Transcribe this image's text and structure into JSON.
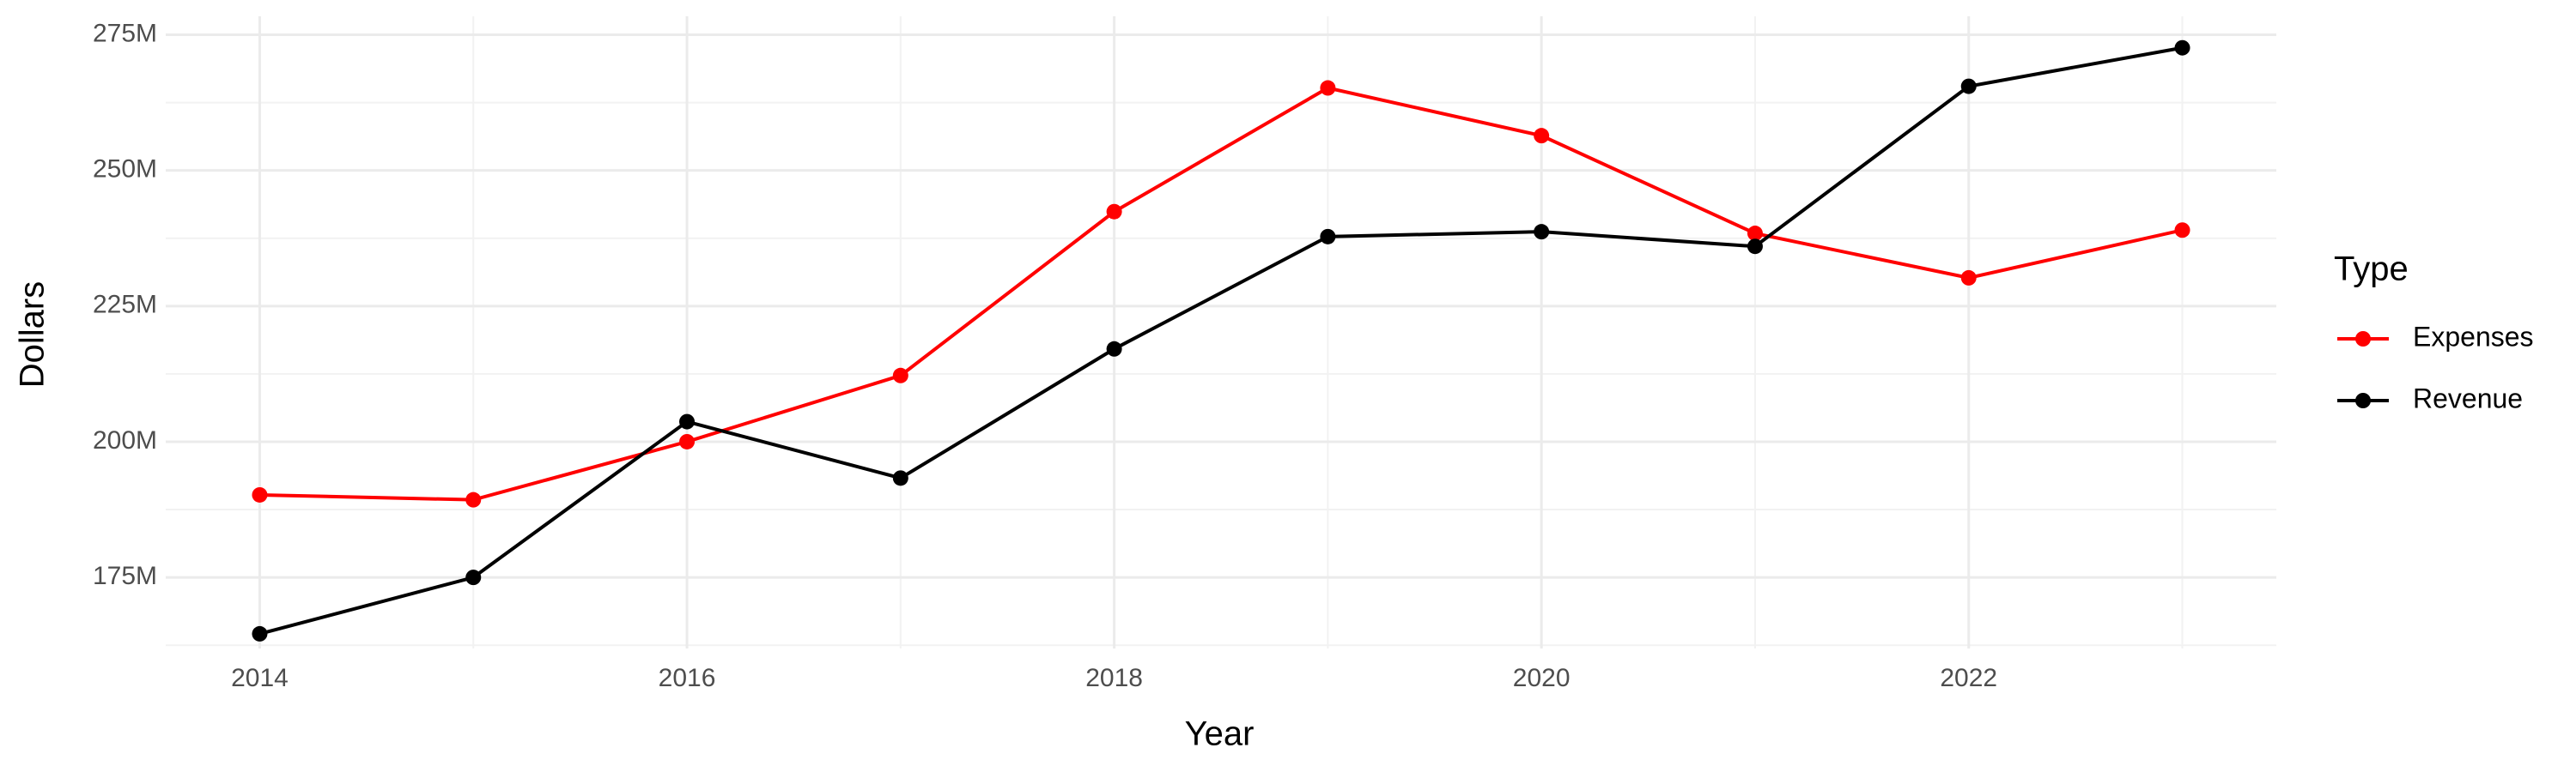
{
  "chart_data": {
    "type": "line",
    "x_label": "Year",
    "y_label": "Dollars",
    "legend_title": "Type",
    "x": [
      2014,
      2015,
      2016,
      2017,
      2018,
      2019,
      2020,
      2021,
      2022,
      2023
    ],
    "series": [
      {
        "name": "Expenses",
        "color": "#ff0000",
        "values": [
          190200000,
          189300000,
          200000000,
          212200000,
          242400000,
          265200000,
          256400000,
          238400000,
          230200000,
          239000000
        ]
      },
      {
        "name": "Revenue",
        "color": "#000000",
        "values": [
          164600000,
          175000000,
          203700000,
          193300000,
          217100000,
          237800000,
          238700000,
          236000000,
          265500000,
          272600000
        ]
      }
    ],
    "xlim": [
      2013.56,
      2023.44
    ],
    "xticks": [
      2014,
      2016,
      2018,
      2020,
      2022
    ],
    "ylim": [
      161900000,
      278400000
    ],
    "yticks": [
      {
        "value": 175000000,
        "label": "175M"
      },
      {
        "value": 200000000,
        "label": "200M"
      },
      {
        "value": 225000000,
        "label": "225M"
      },
      {
        "value": 250000000,
        "label": "250M"
      },
      {
        "value": 275000000,
        "label": "275M"
      }
    ],
    "grid": true,
    "legend": "right"
  }
}
